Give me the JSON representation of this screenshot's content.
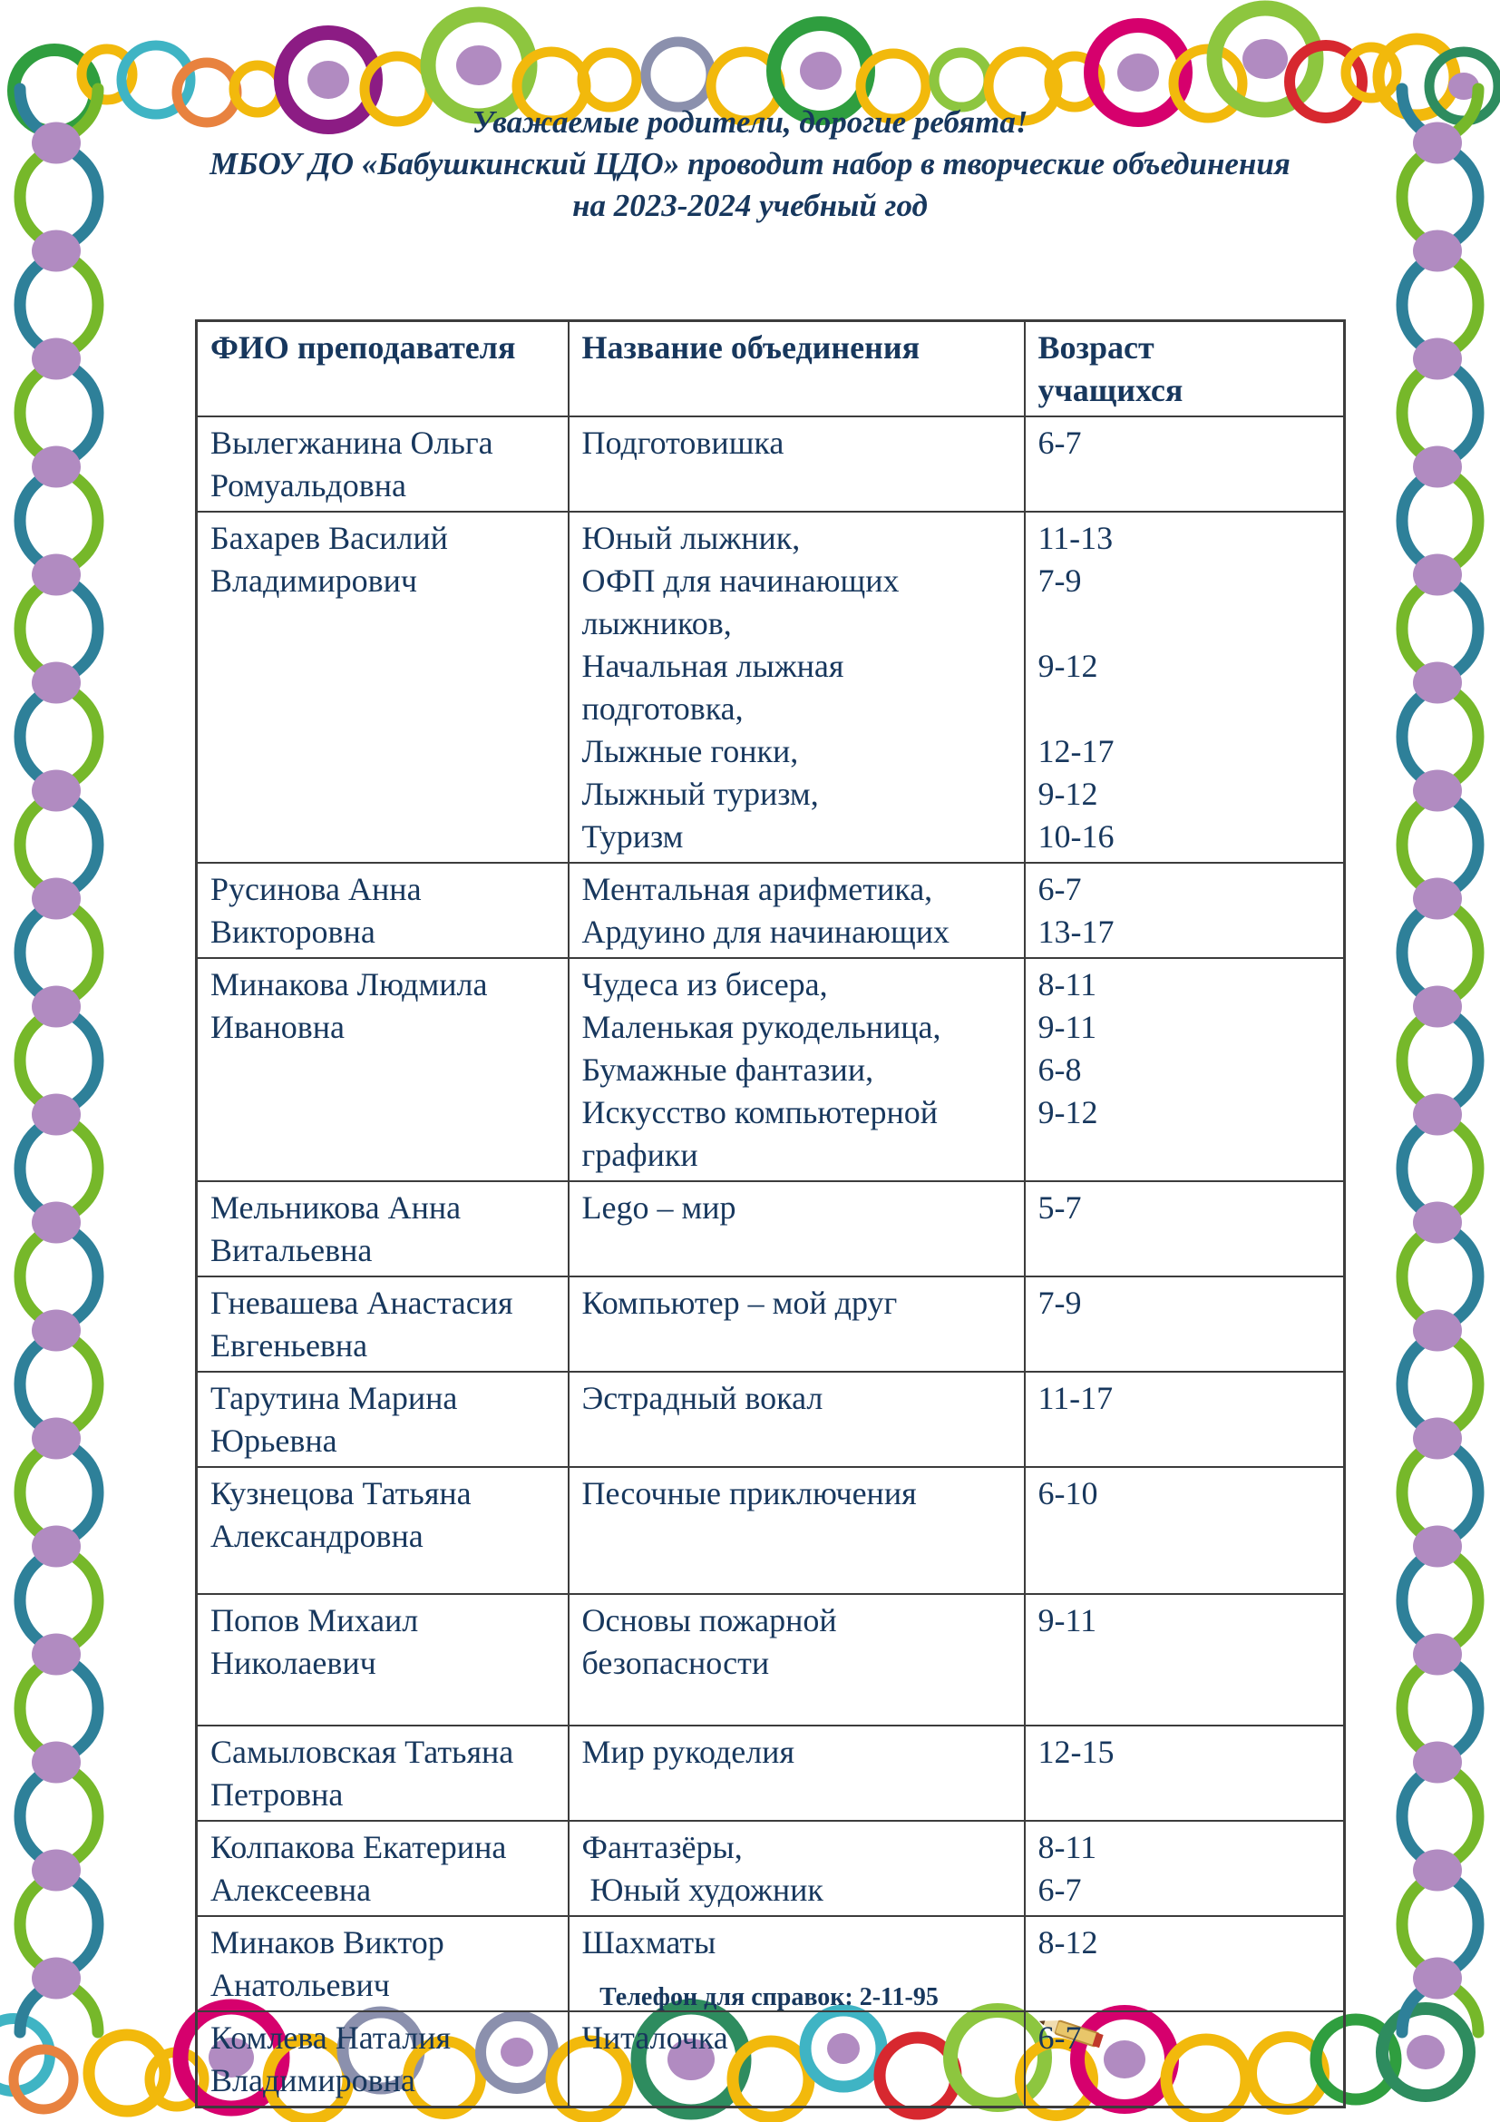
{
  "title": {
    "line1": "Уважаемые родители, дорогие ребята!",
    "line2": "МБОУ ДО «Бабушкинский ЦДО» проводит набор в творческие объединения",
    "line3": "на 2023-2024 учебный год"
  },
  "table": {
    "headers": [
      "ФИО преподавателя",
      "Название объединения",
      "Возраст\nучащихся"
    ],
    "rows": [
      {
        "teacher": "Вылегжанина Ольга\nРомуальдовна",
        "associations": "Подготовишка",
        "ages": "6-7"
      },
      {
        "teacher": "Бахарев Василий\nВладимирович",
        "associations": "Юный лыжник,\nОФП для начинающих\nлыжников,\nНачальная лыжная\nподготовка,\nЛыжные гонки,\nЛыжный туризм,\nТуризм",
        "ages": "11-13\n7-9\n\n9-12\n\n12-17\n9-12\n10-16"
      },
      {
        "teacher": "Русинова Анна\nВикторовна",
        "associations": "Ментальная арифметика,\nАрдуино для начинающих",
        "ages": "6-7\n13-17"
      },
      {
        "teacher": "Минакова Людмила\nИвановна",
        "associations": "Чудеса из бисера,\nМаленькая рукодельница,\nБумажные фантазии,\nИскусство компьютерной\nграфики",
        "ages": "8-11\n9-11\n6-8\n9-12"
      },
      {
        "teacher": "Мельникова Анна\nВитальевна",
        "associations": "Lego – мир",
        "ages": "5-7"
      },
      {
        "teacher": "Гневашева Анастасия\nЕвгеньевна",
        "associations": "Компьютер – мой друг",
        "ages": "7-9"
      },
      {
        "teacher": "Тарутина Марина\nЮрьевна",
        "associations": "Эстрадный вокал",
        "ages": "11-17"
      },
      {
        "teacher": "Кузнецова Татьяна\nАлександровна",
        "associations": "Песочные приключения",
        "ages": "6-10"
      },
      {
        "teacher": "Попов Михаил\nНиколаевич",
        "associations": "Основы пожарной\nбезопасности",
        "ages": "9-11"
      },
      {
        "teacher": "Самыловская Татьяна\nПетровна",
        "associations": "Мир рукоделия",
        "ages": "12-15"
      },
      {
        "teacher": "Колпакова Екатерина\nАлексеевна",
        "associations": "Фантазёры,\n Юный художник",
        "ages": "8-11\n6-7"
      },
      {
        "teacher": "Минаков Виктор\nАнатольевич",
        "associations": "Шахматы",
        "ages": "8-12"
      },
      {
        "teacher": "Комлева Наталия\nВладимировна",
        "associations": "Читалочка",
        "ages": "6-7"
      }
    ]
  },
  "footer": {
    "phone_note": "Телефон для справок: 2-11-95"
  },
  "colors": {
    "text": "#17375d",
    "table_border": "#3c3c3c"
  },
  "decor": {
    "dot": "#b18bc1",
    "helix_green": "#76b82a",
    "helix_teal": "#2e8099",
    "palette": {
      "green": "#2f9e3f",
      "darkgreen": "#2e8c5f",
      "gold": "#f2b90c",
      "teal": "#3fb4c4",
      "orange": "#e8823f",
      "purple": "#8c1c84",
      "lightgreen": "#8dc63f",
      "magenta": "#d6006d",
      "red": "#d7282f",
      "bluegrey": "#8b90ad"
    }
  }
}
